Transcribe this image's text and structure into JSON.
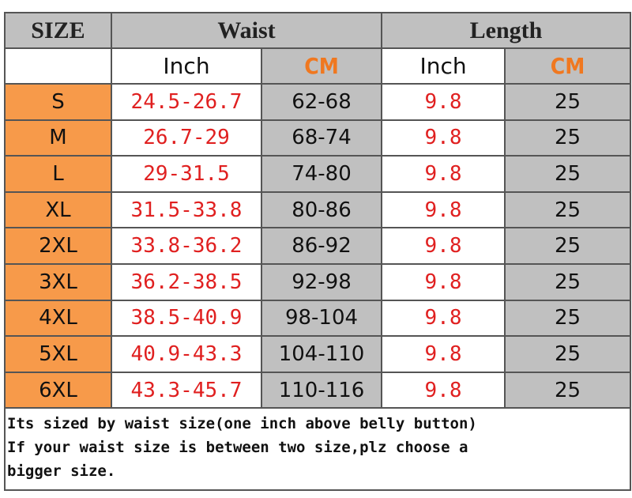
{
  "header": {
    "size": "SIZE",
    "waist": "Waist",
    "length": "Length"
  },
  "subheader": [
    "Inch",
    "CM",
    "Inch",
    "CM"
  ],
  "table": {
    "rows": [
      [
        "S",
        "24.5-26.7",
        "62-68",
        "9.8",
        "25"
      ],
      [
        "M",
        "26.7-29",
        "68-74",
        "9.8",
        "25"
      ],
      [
        "L",
        "29-31.5",
        "74-80",
        "9.8",
        "25"
      ],
      [
        "XL",
        "31.5-33.8",
        "80-86",
        "9.8",
        "25"
      ],
      [
        "2XL",
        "33.8-36.2",
        "86-92",
        "9.8",
        "25"
      ],
      [
        "3XL",
        "36.2-38.5",
        "92-98",
        "9.8",
        "25"
      ],
      [
        "4XL",
        "38.5-40.9",
        "98-104",
        "9.8",
        "25"
      ],
      [
        "5XL",
        "40.9-43.3",
        "104-110",
        "9.8",
        "25"
      ],
      [
        "6XL",
        "43.3-45.7",
        "110-116",
        "9.8",
        "25"
      ]
    ]
  },
  "note": [
    "Its sized by waist size(one inch above belly button)",
    "If your waist size is between two size,plz choose a",
    "bigger size."
  ]
}
